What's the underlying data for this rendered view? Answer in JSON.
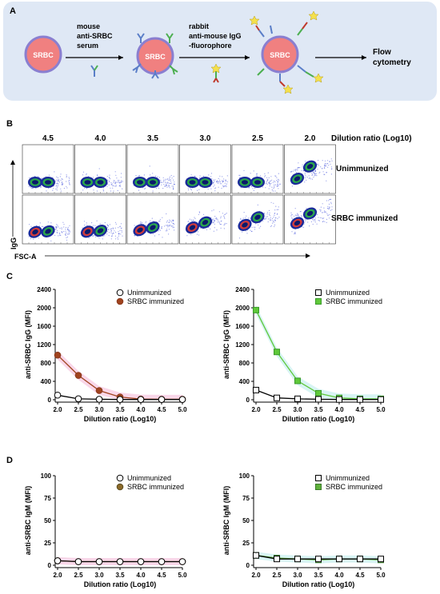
{
  "panels": {
    "a": {
      "letter": "A",
      "cell_label": "SRBC",
      "step1": [
        "mouse",
        "anti-SRBC",
        "serum"
      ],
      "step2": [
        "rabbit",
        "anti-mouse IgG",
        "-fluorophore"
      ],
      "result": [
        "Flow",
        "cytometry"
      ],
      "colors": {
        "box": "#dfe8f5",
        "cell_fill": "#f08080",
        "cell_edge": "#8a7fd0",
        "antibody_blue": "#5a7ec8",
        "antibody_green": "#4caf50",
        "star": "#f4e04d"
      }
    },
    "b": {
      "letter": "B",
      "dilutions": [
        "4.5",
        "4.0",
        "3.5",
        "3.0",
        "2.5",
        "2.0"
      ],
      "dilution_header": "Dilution ratio (Log10)",
      "row_labels": [
        "Unimmunized",
        "SRBC immunized"
      ],
      "y_axis": "IgG",
      "x_axis": "FSC-A"
    },
    "c": {
      "letter": "C"
    },
    "d": {
      "letter": "D"
    }
  },
  "chart_data": [
    {
      "type": "line",
      "panel": "C-left",
      "xlabel": "Dilution ratio (Log10)",
      "ylabel": "anti-SRBC IgG (MFI)",
      "x": [
        2.0,
        2.5,
        3.0,
        3.5,
        4.0,
        4.5,
        5.0
      ],
      "xticks": [
        "2.0",
        "2.5",
        "3.0",
        "3.5",
        "4.0",
        "4.5",
        "5.0"
      ],
      "ylim": [
        0,
        2400
      ],
      "yticks": [
        "0",
        "400",
        "800",
        "1200",
        "1600",
        "2000",
        "2400"
      ],
      "legend_position": "top-right",
      "series": [
        {
          "name": "Unimmunized",
          "values": [
            100,
            20,
            10,
            5,
            5,
            5,
            5
          ],
          "marker": "open-circle",
          "color": "#000000",
          "fill": "none"
        },
        {
          "name": "SRBC immunized",
          "values": [
            970,
            530,
            200,
            60,
            15,
            10,
            10
          ],
          "marker": "filled-circle",
          "color": "#8b3a1e",
          "fill": "#a0431e",
          "band": "#f7c6e0"
        }
      ]
    },
    {
      "type": "line",
      "panel": "C-right",
      "xlabel": "Dilution ratio (Log10)",
      "ylabel": "anti-SRBC IgG (MFI)",
      "x": [
        2.0,
        2.5,
        3.0,
        3.5,
        4.0,
        4.5,
        5.0
      ],
      "xticks": [
        "2.0",
        "2.5",
        "3.0",
        "3.5",
        "4.0",
        "4.5",
        "5.0"
      ],
      "ylim": [
        0,
        2400
      ],
      "yticks": [
        "0",
        "400",
        "800",
        "1200",
        "1600",
        "2000",
        "2400"
      ],
      "legend_position": "top-right",
      "series": [
        {
          "name": "Unimmunized",
          "values": [
            210,
            40,
            20,
            10,
            5,
            5,
            5
          ],
          "marker": "open-square",
          "color": "#000000",
          "fill": "none"
        },
        {
          "name": "SRBC immunized",
          "values": [
            1950,
            1040,
            410,
            140,
            40,
            20,
            20
          ],
          "marker": "filled-square",
          "color": "#3a9a2a",
          "fill": "#5fc83a",
          "band": "#c8f0ef"
        }
      ]
    },
    {
      "type": "line",
      "panel": "D-left",
      "xlabel": "Dilution ratio (Log10)",
      "ylabel": "anti-SRBC IgM (MFI)",
      "x": [
        2.0,
        2.5,
        3.0,
        3.5,
        4.0,
        4.5,
        5.0
      ],
      "xticks": [
        "2.0",
        "2.5",
        "3.0",
        "3.5",
        "4.0",
        "4.5",
        "5.0"
      ],
      "ylim": [
        0,
        100
      ],
      "yticks": [
        "0",
        "25",
        "50",
        "75",
        "100"
      ],
      "legend_position": "top-right",
      "series": [
        {
          "name": "Unimmunized",
          "values": [
            5,
            4,
            4,
            4,
            4,
            4,
            4
          ],
          "marker": "open-circle",
          "color": "#000000",
          "fill": "none"
        },
        {
          "name": "SRBC immunized",
          "values": [
            5,
            4,
            4,
            4,
            4,
            4,
            4
          ],
          "marker": "filled-circle",
          "color": "#5a4a1e",
          "fill": "#8b6a2a",
          "band": "#f7c6e0"
        }
      ]
    },
    {
      "type": "line",
      "panel": "D-right",
      "xlabel": "Dilution ratio (Log10)",
      "ylabel": "anti-SRBC IgM (MFI)",
      "x": [
        2.0,
        2.5,
        3.0,
        3.5,
        4.0,
        4.5,
        5.0
      ],
      "xticks": [
        "2.0",
        "2.5",
        "3.0",
        "3.5",
        "4.0",
        "4.5",
        "5.0"
      ],
      "ylim": [
        0,
        100
      ],
      "yticks": [
        "0",
        "25",
        "50",
        "75",
        "100"
      ],
      "legend_position": "top-right",
      "series": [
        {
          "name": "Unimmunized",
          "values": [
            11,
            7,
            7,
            7,
            7,
            7,
            7
          ],
          "marker": "open-square",
          "color": "#000000",
          "fill": "none"
        },
        {
          "name": "SRBC immunized",
          "values": [
            11,
            8,
            7,
            6,
            7,
            7,
            6
          ],
          "marker": "filled-square",
          "color": "#3a7a2a",
          "fill": "#5fb03a",
          "band": "#c8f0ef"
        }
      ]
    }
  ]
}
